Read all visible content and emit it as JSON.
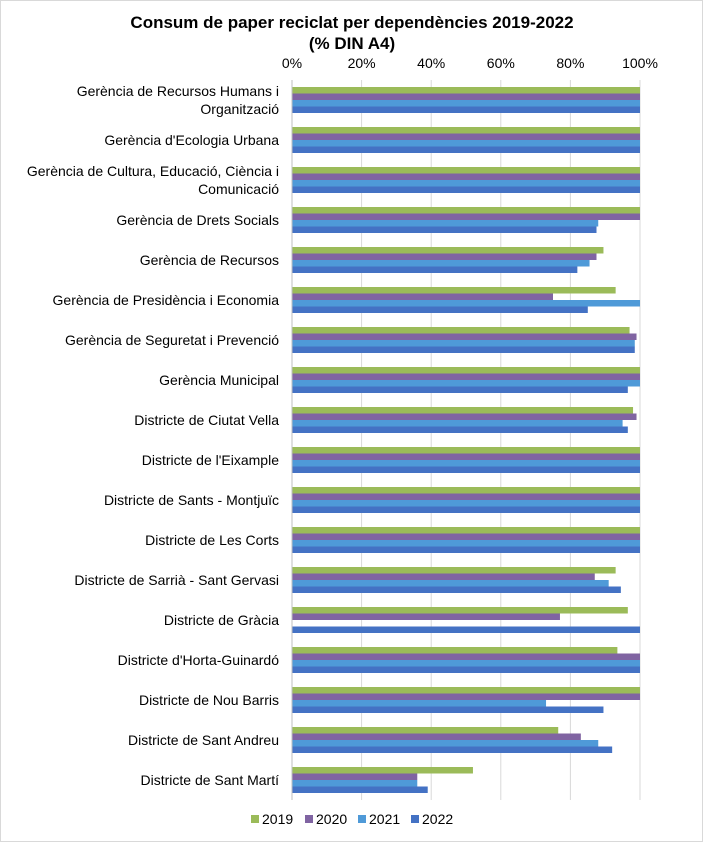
{
  "chart_data": {
    "type": "bar",
    "orientation": "horizontal",
    "title": "Consum de paper reciclat per dependències 2019-2022",
    "subtitle": "(% DIN A4)",
    "xlim": [
      0,
      100
    ],
    "x_ticks": [
      "0%",
      "20%",
      "40%",
      "60%",
      "80%",
      "100%"
    ],
    "x_tick_values": [
      0,
      20,
      40,
      60,
      80,
      100
    ],
    "x_axis_position": "top",
    "grid": true,
    "legend_position": "bottom",
    "categories": [
      [
        "Gerència de Recursos Humans i",
        "Organització"
      ],
      [
        "Gerència d'Ecologia Urbana"
      ],
      [
        "Gerència de Cultura, Educació, Ciència i",
        "Comunicació"
      ],
      [
        "Gerència de Drets Socials"
      ],
      [
        "Gerència de Recursos"
      ],
      [
        "Gerència de Presidència i Economia"
      ],
      [
        "Gerència de Seguretat i Prevenció"
      ],
      [
        "Gerència Municipal"
      ],
      [
        "Districte de Ciutat Vella"
      ],
      [
        "Districte de l'Eixample"
      ],
      [
        "Districte de Sants - Montjuïc"
      ],
      [
        "Districte de Les Corts"
      ],
      [
        "Districte de Sarrià - Sant Gervasi"
      ],
      [
        "Districte de Gràcia"
      ],
      [
        "Districte d'Horta-Guinardó"
      ],
      [
        "Districte de Nou Barris"
      ],
      [
        "Districte de Sant Andreu"
      ],
      [
        "Districte de Sant Martí"
      ]
    ],
    "series": [
      {
        "name": "2019",
        "color": "#9bbb59",
        "values": [
          100,
          100,
          100,
          100,
          89.5,
          93,
          97,
          100,
          98,
          100,
          100,
          100,
          93,
          96.5,
          93.5,
          100,
          76.5,
          52
        ]
      },
      {
        "name": "2020",
        "color": "#8064a2",
        "values": [
          100,
          100,
          100,
          100,
          87.5,
          75,
          99,
          100,
          99,
          100,
          100,
          100,
          87,
          77,
          100,
          100,
          83,
          36
        ]
      },
      {
        "name": "2021",
        "color": "#4f9ad8",
        "values": [
          100,
          100,
          100,
          88,
          85.5,
          100,
          98.5,
          100,
          95,
          100,
          100,
          100,
          91,
          0,
          100,
          73,
          88,
          36
        ]
      },
      {
        "name": "2022",
        "color": "#4472c4",
        "values": [
          100,
          100,
          100,
          87.5,
          82,
          85,
          98.5,
          96.5,
          96.5,
          100,
          100,
          100,
          94.5,
          100,
          100,
          89.5,
          92,
          39
        ]
      }
    ]
  }
}
